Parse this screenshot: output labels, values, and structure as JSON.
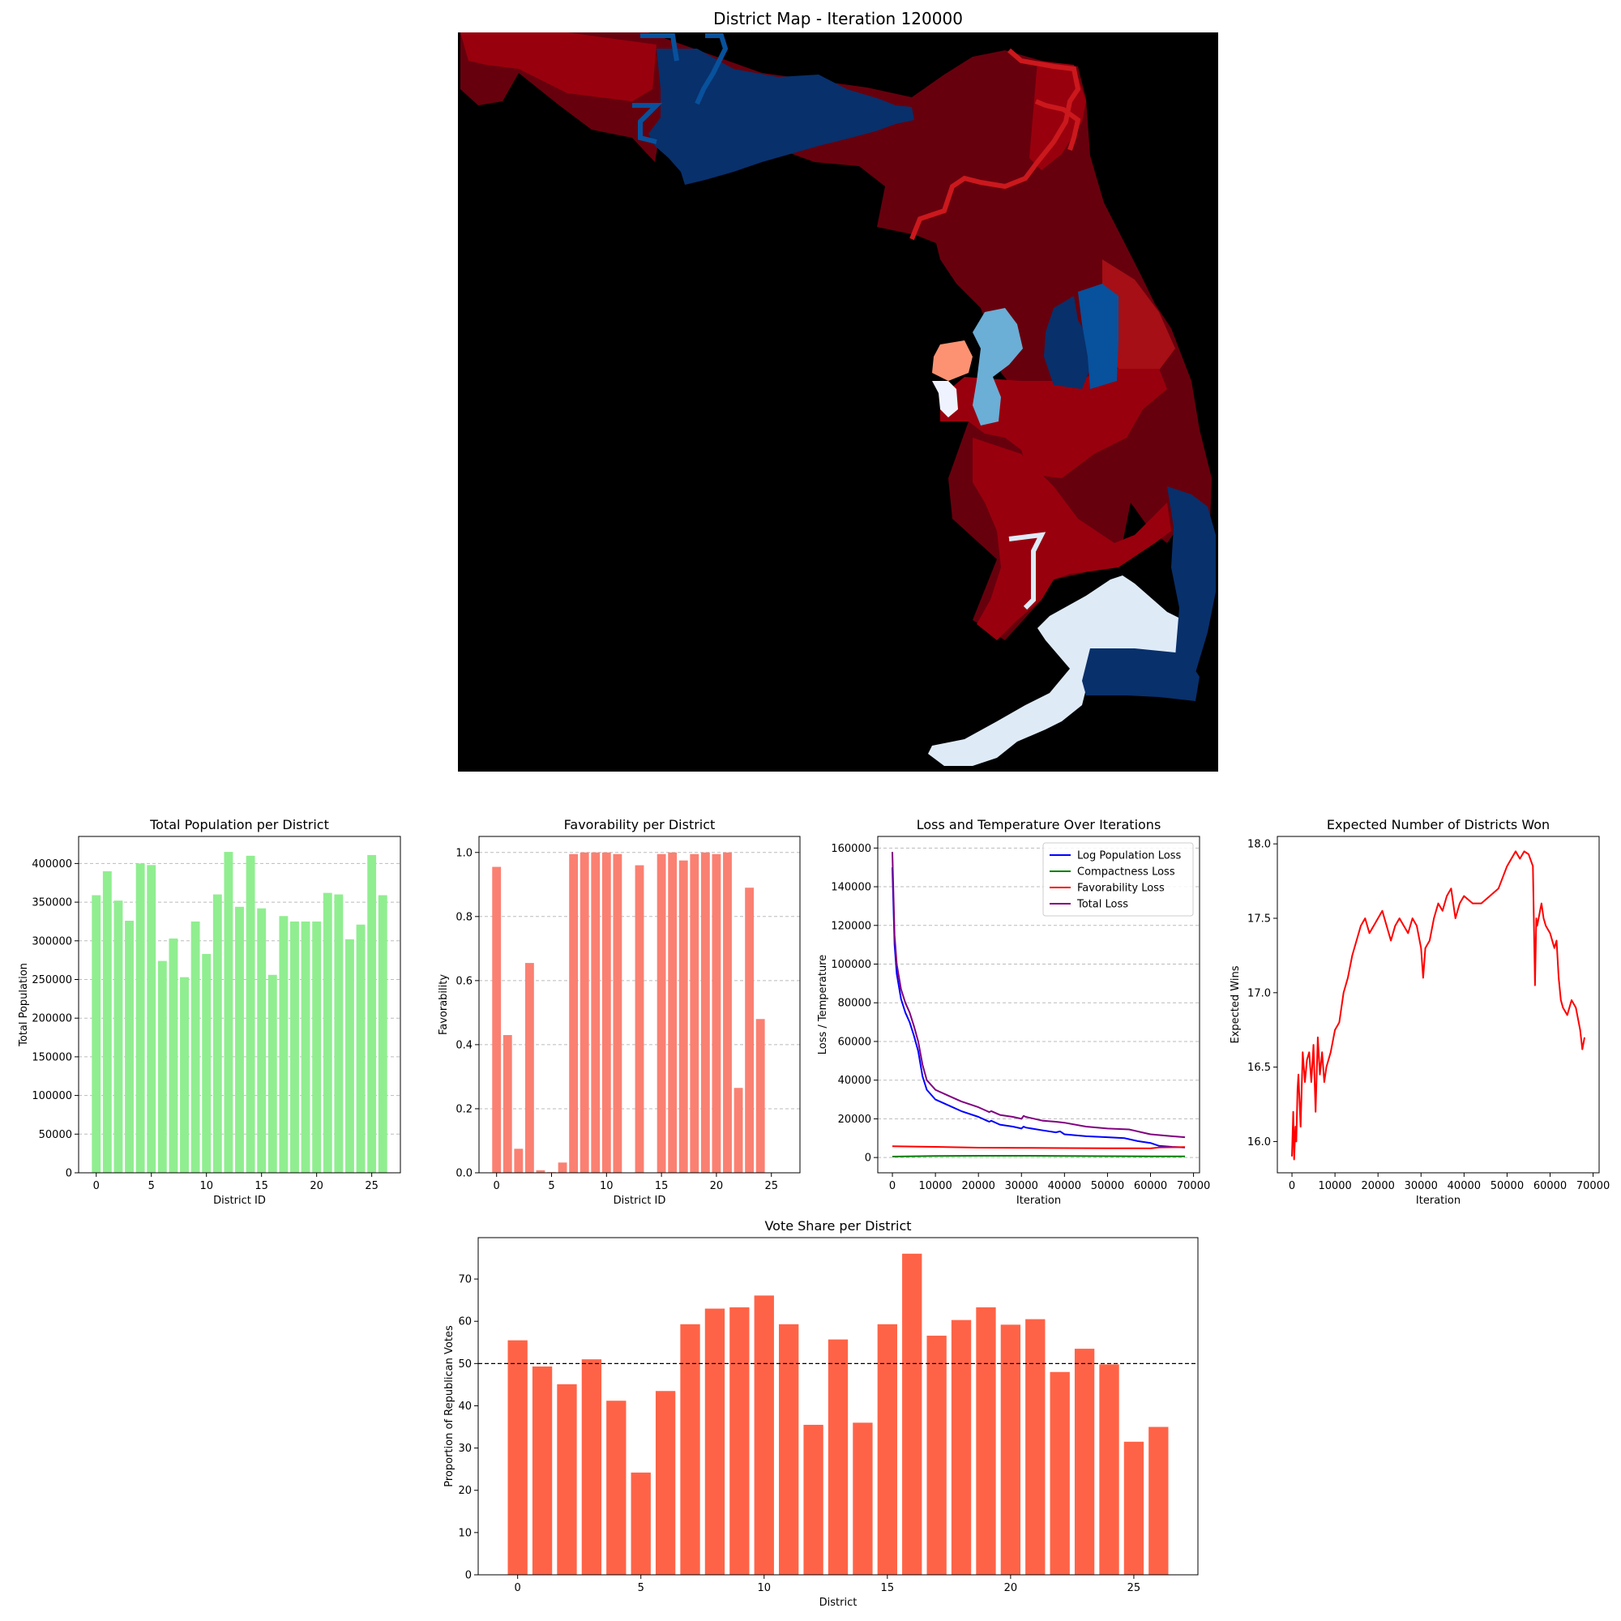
{
  "map": {
    "title": "District Map - Iteration 120000"
  },
  "chart_data": [
    {
      "id": "population",
      "type": "bar",
      "title": "Total Population per District",
      "xlabel": "District ID",
      "ylabel": "Total Population",
      "color": "#90ee90",
      "categories": [
        0,
        1,
        2,
        3,
        4,
        5,
        6,
        7,
        8,
        9,
        10,
        11,
        12,
        13,
        14,
        15,
        16,
        17,
        18,
        19,
        20,
        21,
        22,
        23,
        24,
        25,
        26
      ],
      "values": [
        359000,
        390000,
        352000,
        326000,
        400000,
        398000,
        274000,
        303000,
        253000,
        325000,
        283000,
        360000,
        415000,
        344000,
        410000,
        342000,
        256000,
        332000,
        325000,
        325000,
        325000,
        362000,
        360000,
        302000,
        321000,
        411000,
        359000
      ],
      "xlim": [
        -1.6,
        27.6
      ],
      "ylim": [
        0,
        435000
      ],
      "xticks": [
        0,
        5,
        10,
        15,
        20,
        25
      ],
      "yticks": [
        0,
        50000,
        100000,
        150000,
        200000,
        250000,
        300000,
        350000,
        400000
      ],
      "grid": "y-dashed"
    },
    {
      "id": "favorability",
      "type": "bar",
      "title": "Favorability per District",
      "xlabel": "District ID",
      "ylabel": "Favorability",
      "color": "#fa8072",
      "categories": [
        0,
        1,
        2,
        3,
        4,
        5,
        6,
        7,
        8,
        9,
        10,
        11,
        12,
        13,
        14,
        15,
        16,
        17,
        18,
        19,
        20,
        21,
        22,
        23,
        24,
        25,
        26
      ],
      "values": [
        0.955,
        0.43,
        0.075,
        0.655,
        0.008,
        0.002,
        0.032,
        0.995,
        1.0,
        1.0,
        1.0,
        0.995,
        0.0,
        0.96,
        0.0,
        0.995,
        1.0,
        0.975,
        0.995,
        1.0,
        0.995,
        1.0,
        0.265,
        0.89,
        0.48,
        0.0,
        0.0
      ],
      "xlim": [
        -1.6,
        27.6
      ],
      "ylim": [
        0,
        1.05
      ],
      "xticks": [
        0,
        5,
        10,
        15,
        20,
        25
      ],
      "yticks": [
        0.0,
        0.2,
        0.4,
        0.6,
        0.8,
        1.0
      ],
      "grid": "y-dashed"
    },
    {
      "id": "loss",
      "type": "line",
      "title": "Loss and Temperature Over Iterations",
      "xlabel": "Iteration",
      "ylabel": "Loss / Temperature",
      "xlim": [
        -3400,
        71400
      ],
      "ylim": [
        -7900,
        166000
      ],
      "xticks": [
        0,
        10000,
        20000,
        30000,
        40000,
        50000,
        60000,
        70000
      ],
      "yticks": [
        0,
        20000,
        40000,
        60000,
        80000,
        100000,
        120000,
        140000,
        160000
      ],
      "grid": "y-dashed",
      "legend": "top-right",
      "series": [
        {
          "name": "Log Population Loss",
          "color": "#0000ff",
          "x": [
            0,
            500,
            1000,
            2000,
            3000,
            4000,
            5000,
            6000,
            7000,
            8000,
            10000,
            13000,
            16000,
            20000,
            22000,
            22500,
            23000,
            25000,
            28000,
            30000,
            30500,
            31000,
            35000,
            38000,
            39000,
            40000,
            45000,
            50000,
            54000,
            55000,
            57000,
            60000,
            62000,
            65000,
            68000
          ],
          "y": [
            150000,
            110000,
            95000,
            82000,
            75000,
            70000,
            63000,
            55000,
            42000,
            35000,
            30000,
            27000,
            24000,
            21000,
            19000,
            18500,
            19000,
            17000,
            16000,
            15000,
            16000,
            15500,
            14000,
            13000,
            13500,
            12000,
            11000,
            10500,
            10000,
            9500,
            8500,
            7500,
            6000,
            5500,
            5200
          ]
        },
        {
          "name": "Compactness Loss",
          "color": "#008000",
          "x": [
            0,
            10000,
            20000,
            30000,
            40000,
            50000,
            60000,
            68000
          ],
          "y": [
            500,
            800,
            900,
            900,
            800,
            700,
            600,
            600
          ]
        },
        {
          "name": "Favorability Loss",
          "color": "#ff0000",
          "x": [
            0,
            10000,
            20000,
            30000,
            40000,
            50000,
            55000,
            60000,
            62000,
            68000
          ],
          "y": [
            5800,
            5500,
            5100,
            5000,
            4900,
            4800,
            4800,
            4700,
            5200,
            5400
          ]
        },
        {
          "name": "Total Loss",
          "color": "#800080",
          "x": [
            0,
            500,
            1000,
            2000,
            3000,
            4000,
            5000,
            6000,
            7000,
            8000,
            10000,
            13000,
            16000,
            20000,
            22000,
            22500,
            23000,
            25000,
            28000,
            30000,
            30500,
            31000,
            35000,
            38000,
            40000,
            45000,
            50000,
            55000,
            58000,
            60000,
            65000,
            68000
          ],
          "y": [
            158000,
            115000,
            100000,
            87000,
            80000,
            75000,
            68000,
            60000,
            48000,
            40000,
            35000,
            32000,
            29000,
            26000,
            24000,
            23500,
            24000,
            22000,
            21000,
            20000,
            21500,
            21000,
            19000,
            18500,
            18000,
            16000,
            15000,
            14500,
            13000,
            12000,
            11000,
            10500
          ]
        }
      ]
    },
    {
      "id": "expected_wins",
      "type": "line",
      "title": "Expected Number of Districts Won",
      "xlabel": "Iteration",
      "ylabel": "Expected Wins",
      "xlim": [
        -3400,
        71400
      ],
      "ylim": [
        15.79,
        18.05
      ],
      "xticks": [
        0,
        10000,
        20000,
        30000,
        40000,
        50000,
        60000,
        70000
      ],
      "yticks": [
        16.0,
        16.5,
        17.0,
        17.5,
        18.0
      ],
      "grid": "none",
      "series": [
        {
          "name": "",
          "color": "#ff0000",
          "x": [
            0,
            300,
            500,
            800,
            1000,
            1300,
            1500,
            2000,
            2500,
            3000,
            3500,
            4000,
            4500,
            5000,
            5500,
            6000,
            6500,
            7000,
            7500,
            8000,
            9000,
            10000,
            11000,
            12000,
            13000,
            14000,
            15000,
            16000,
            17000,
            18000,
            19000,
            20000,
            21000,
            22000,
            23000,
            24000,
            25000,
            26000,
            27000,
            28000,
            29000,
            30000,
            30500,
            31000,
            32000,
            33000,
            34000,
            35000,
            36000,
            37000,
            38000,
            39000,
            40000,
            42000,
            44000,
            46000,
            48000,
            50000,
            52000,
            53000,
            54000,
            55000,
            56000,
            56500,
            56800,
            57000,
            58000,
            58500,
            59000,
            60000,
            61000,
            61500,
            62000,
            62500,
            63000,
            64000,
            65000,
            66000,
            67000,
            67500,
            68000
          ],
          "y": [
            15.9,
            16.2,
            15.88,
            16.1,
            16.0,
            16.35,
            16.45,
            16.1,
            16.6,
            16.4,
            16.55,
            16.6,
            16.4,
            16.65,
            16.2,
            16.7,
            16.45,
            16.6,
            16.4,
            16.5,
            16.6,
            16.75,
            16.8,
            17.0,
            17.1,
            17.25,
            17.35,
            17.45,
            17.5,
            17.4,
            17.45,
            17.5,
            17.55,
            17.45,
            17.35,
            17.45,
            17.5,
            17.45,
            17.4,
            17.5,
            17.45,
            17.3,
            17.1,
            17.3,
            17.35,
            17.5,
            17.6,
            17.55,
            17.65,
            17.7,
            17.5,
            17.6,
            17.65,
            17.6,
            17.6,
            17.65,
            17.7,
            17.85,
            17.95,
            17.9,
            17.95,
            17.93,
            17.85,
            17.05,
            17.5,
            17.45,
            17.6,
            17.5,
            17.45,
            17.4,
            17.3,
            17.35,
            17.1,
            16.95,
            16.9,
            16.85,
            16.95,
            16.9,
            16.75,
            16.62,
            16.7
          ]
        }
      ]
    },
    {
      "id": "vote_share",
      "type": "bar",
      "title": "Vote Share per District",
      "xlabel": "District",
      "ylabel": "Proportion of Republican Votes",
      "color": "#ff6347",
      "categories": [
        0,
        1,
        2,
        3,
        4,
        5,
        6,
        7,
        8,
        9,
        10,
        11,
        12,
        13,
        14,
        15,
        16,
        17,
        18,
        19,
        20,
        21,
        22,
        23,
        24,
        25,
        26
      ],
      "values": [
        55.5,
        49.3,
        45.1,
        51.0,
        41.2,
        24.2,
        43.5,
        59.3,
        63.0,
        63.3,
        66.1,
        59.3,
        35.5,
        55.7,
        36.0,
        59.3,
        76.0,
        56.6,
        60.3,
        63.3,
        59.2,
        60.5,
        48.0,
        53.5,
        49.8,
        31.5,
        35.0
      ],
      "xlim": [
        -1.6,
        27.6
      ],
      "ylim": [
        0,
        79.8
      ],
      "xticks": [
        0,
        5,
        10,
        15,
        20,
        25
      ],
      "yticks": [
        0,
        10,
        20,
        30,
        40,
        50,
        60,
        70
      ],
      "reference_line": 50,
      "grid": "none"
    }
  ]
}
